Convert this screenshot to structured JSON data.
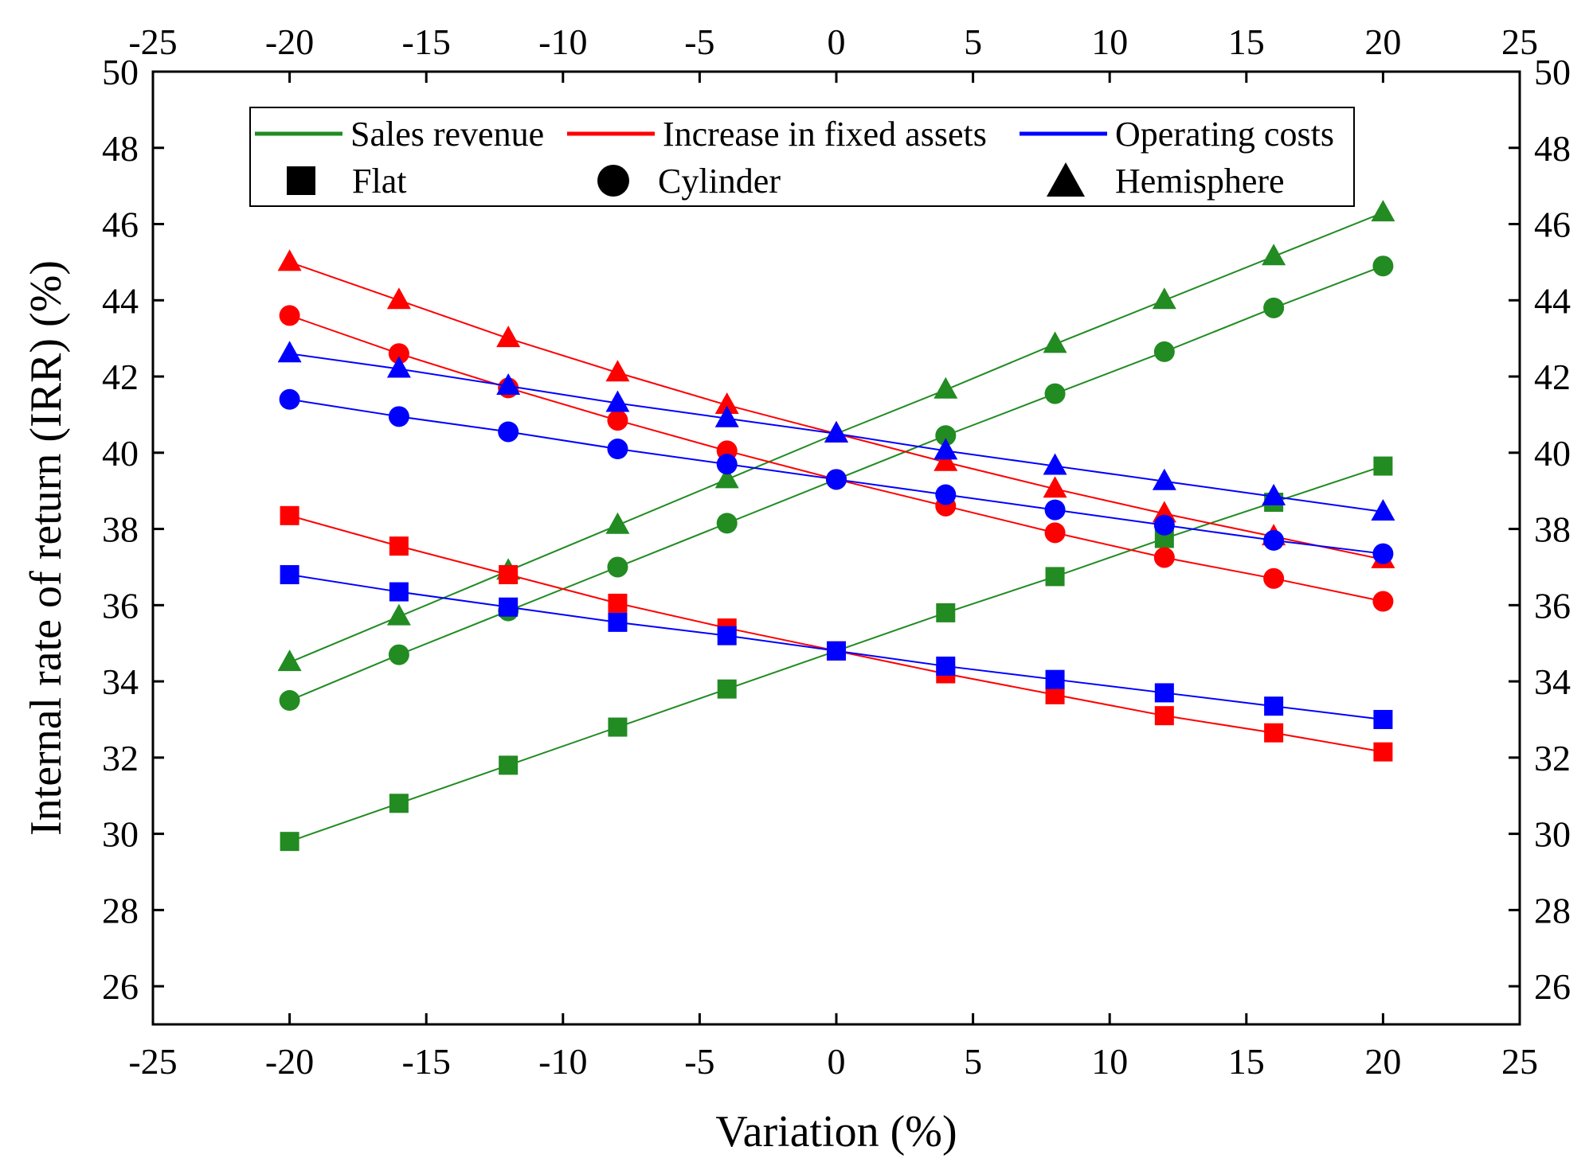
{
  "chart_data": {
    "type": "line",
    "xlabel": "Variation (%)",
    "ylabel": "Internal rate of return (IRR) (%)",
    "xlim": [
      -25,
      25
    ],
    "ylim": [
      25,
      50
    ],
    "x_ticks": [
      -25,
      -20,
      -15,
      -10,
      -5,
      0,
      5,
      10,
      15,
      20,
      25
    ],
    "x_tick_labels": [
      "-25",
      "-20",
      "-15",
      "-10",
      "-5",
      "0",
      "5",
      "10",
      "15",
      "20",
      "25"
    ],
    "y_ticks": [
      26,
      28,
      30,
      32,
      34,
      36,
      38,
      40,
      42,
      44,
      46,
      48,
      50
    ],
    "y_tick_labels": [
      "26",
      "28",
      "30",
      "32",
      "34",
      "36",
      "38",
      "40",
      "42",
      "44",
      "46",
      "48",
      "50"
    ],
    "grid": false,
    "legend_position": "top",
    "x": [
      -20,
      -16,
      -12,
      -8,
      -4,
      0,
      4,
      8,
      12,
      16,
      20
    ],
    "legend": {
      "lines": [
        {
          "label": "Sales revenue",
          "color": "#228B22"
        },
        {
          "label": "Increase in fixed assets",
          "color": "#FF0000"
        },
        {
          "label": "Operating costs",
          "color": "#0000FF"
        }
      ],
      "markers": [
        {
          "label": "Flat",
          "shape": "square"
        },
        {
          "label": "Cylinder",
          "shape": "circle"
        },
        {
          "label": "Hemisphere",
          "shape": "triangle"
        }
      ]
    },
    "series": [
      {
        "name": "Sales revenue - Flat",
        "factor": "Sales revenue",
        "shape": "square",
        "color": "#228B22",
        "values": [
          29.8,
          30.8,
          31.8,
          32.8,
          33.8,
          34.8,
          35.8,
          36.75,
          37.75,
          38.7,
          39.65
        ]
      },
      {
        "name": "Sales revenue - Cylinder",
        "factor": "Sales revenue",
        "shape": "circle",
        "color": "#228B22",
        "values": [
          33.5,
          34.7,
          35.85,
          37.0,
          38.15,
          39.3,
          40.45,
          41.55,
          42.65,
          43.8,
          44.9
        ]
      },
      {
        "name": "Sales revenue - Hemisphere",
        "factor": "Sales revenue",
        "shape": "triangle",
        "color": "#228B22",
        "values": [
          34.5,
          35.7,
          36.9,
          38.1,
          39.3,
          40.5,
          41.65,
          42.85,
          44.0,
          45.15,
          46.3
        ]
      },
      {
        "name": "Increase in fixed assets - Flat",
        "factor": "Increase in fixed assets",
        "shape": "square",
        "color": "#FF0000",
        "values": [
          38.35,
          37.55,
          36.8,
          36.05,
          35.4,
          34.8,
          34.2,
          33.65,
          33.1,
          32.65,
          32.15
        ]
      },
      {
        "name": "Increase in fixed assets - Cylinder",
        "factor": "Increase in fixed assets",
        "shape": "circle",
        "color": "#FF0000",
        "values": [
          43.6,
          42.6,
          41.7,
          40.85,
          40.05,
          39.3,
          38.6,
          37.9,
          37.25,
          36.7,
          36.1
        ]
      },
      {
        "name": "Increase in fixed assets - Hemisphere",
        "factor": "Increase in fixed assets",
        "shape": "triangle",
        "color": "#FF0000",
        "values": [
          45.0,
          44.0,
          43.0,
          42.1,
          41.25,
          40.5,
          39.75,
          39.05,
          38.4,
          37.8,
          37.2
        ]
      },
      {
        "name": "Operating costs - Flat",
        "factor": "Operating costs",
        "shape": "square",
        "color": "#0000FF",
        "values": [
          36.8,
          36.35,
          35.95,
          35.55,
          35.2,
          34.8,
          34.4,
          34.05,
          33.7,
          33.35,
          33.0
        ]
      },
      {
        "name": "Operating costs - Cylinder",
        "factor": "Operating costs",
        "shape": "circle",
        "color": "#0000FF",
        "values": [
          41.4,
          40.95,
          40.55,
          40.1,
          39.7,
          39.3,
          38.9,
          38.5,
          38.1,
          37.7,
          37.35
        ]
      },
      {
        "name": "Operating costs - Hemisphere",
        "factor": "Operating costs",
        "shape": "triangle",
        "color": "#0000FF",
        "values": [
          42.6,
          42.2,
          41.75,
          41.3,
          40.9,
          40.5,
          40.05,
          39.65,
          39.25,
          38.85,
          38.45
        ]
      }
    ]
  }
}
